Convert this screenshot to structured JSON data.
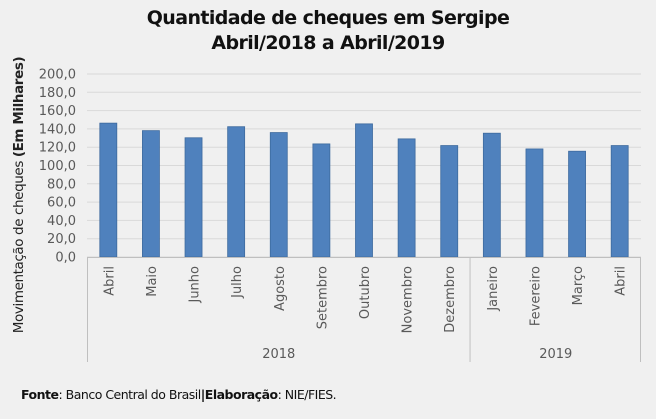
{
  "chart_data": {
    "type": "bar",
    "title_line1": "Quantidade de cheques em Sergipe",
    "title_line2": "Abril/2018 a Abril/2019",
    "ylabel_normal": "Movimentação de cheques ",
    "ylabel_bold": "(Em Milhares)",
    "xlabel": "",
    "ylim": [
      0,
      200
    ],
    "ytick_step": 20,
    "yticks": [
      "0,0",
      "20,0",
      "40,0",
      "60,0",
      "80,0",
      "100,0",
      "120,0",
      "140,0",
      "160,0",
      "180,0",
      "200,0"
    ],
    "grid": true,
    "bar_color": "#4f81bd",
    "bar_border_color": "#3d6a9e",
    "categories": [
      "Abril",
      "Maio",
      "Junho",
      "Julho",
      "Agosto",
      "Setembro",
      "Outubro",
      "Novembro",
      "Dezembro",
      "Janeiro",
      "Fevereiro",
      "Março",
      "Abril"
    ],
    "groups": [
      {
        "label": "2018",
        "count": 9
      },
      {
        "label": "2019",
        "count": 4
      }
    ],
    "series": [
      {
        "name": "Quantidade de cheques",
        "values": [
          146.3,
          138.1,
          130.3,
          142.4,
          136.0,
          123.6,
          145.5,
          129.1,
          121.8,
          135.3,
          118.1,
          115.6,
          121.8
        ]
      }
    ]
  },
  "footer": {
    "source_label": "Fonte",
    "source_text": ": Banco Central do Brasil",
    "separator": "|",
    "credit_label": "Elaboração",
    "credit_text": ": NIE/FIES."
  }
}
